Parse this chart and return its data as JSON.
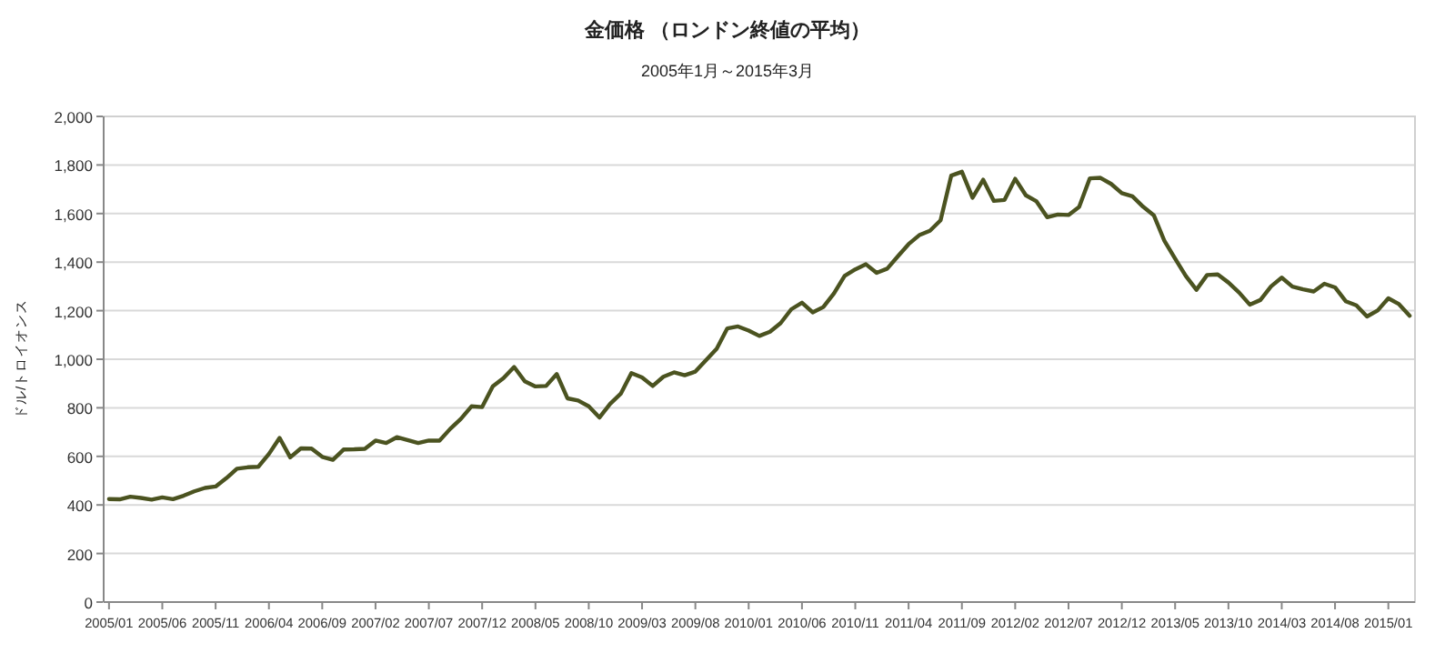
{
  "chart_data": {
    "type": "line",
    "title": "金価格 （ロンドン終値の平均）",
    "subtitle": "2005年1月～2015年3月",
    "ylabel": "ドル/トロイオンス",
    "categories": [
      "2005/01",
      null,
      null,
      null,
      null,
      "2005/06",
      null,
      null,
      null,
      null,
      "2005/11",
      null,
      null,
      null,
      null,
      "2006/04",
      null,
      null,
      null,
      null,
      "2006/09",
      null,
      null,
      null,
      null,
      "2007/02",
      null,
      null,
      null,
      null,
      "2007/07",
      null,
      null,
      null,
      null,
      "2007/12",
      null,
      null,
      null,
      null,
      "2008/05",
      null,
      null,
      null,
      null,
      "2008/10",
      null,
      null,
      null,
      null,
      "2009/03",
      null,
      null,
      null,
      null,
      "2009/08",
      null,
      null,
      null,
      null,
      "2010/01",
      null,
      null,
      null,
      null,
      "2010/06",
      null,
      null,
      null,
      null,
      "2010/11",
      null,
      null,
      null,
      null,
      "2011/04",
      null,
      null,
      null,
      null,
      "2011/09",
      null,
      null,
      null,
      null,
      "2012/02",
      null,
      null,
      null,
      null,
      "2012/07",
      null,
      null,
      null,
      null,
      "2012/12",
      null,
      null,
      null,
      null,
      "2013/05",
      null,
      null,
      null,
      null,
      "2013/10",
      null,
      null,
      null,
      null,
      "2014/03",
      null,
      null,
      null,
      null,
      "2014/08",
      null,
      null,
      null,
      null,
      "2015/01",
      null,
      null
    ],
    "series": [
      {
        "color": "#4b5320",
        "values": [
          424,
          423,
          434,
          429,
          422,
          431,
          424,
          438,
          456,
          470,
          476,
          510,
          549,
          555,
          557,
          610,
          676,
          596,
          633,
          632,
          598,
          586,
          628,
          629,
          631,
          665,
          655,
          679,
          667,
          655,
          665,
          665,
          713,
          754,
          806,
          803,
          889,
          922,
          968,
          909,
          888,
          890,
          939,
          839,
          830,
          806,
          760,
          816,
          858,
          943,
          925,
          890,
          928,
          946,
          934,
          949,
          996,
          1043,
          1127,
          1135,
          1118,
          1096,
          1113,
          1149,
          1206,
          1233,
          1193,
          1215,
          1271,
          1343,
          1370,
          1391,
          1356,
          1373,
          1424,
          1474,
          1511,
          1529,
          1572,
          1756,
          1772,
          1665,
          1739,
          1652,
          1656,
          1743,
          1675,
          1650,
          1585,
          1596,
          1594,
          1627,
          1745,
          1747,
          1722,
          1684,
          1671,
          1628,
          1593,
          1487,
          1414,
          1343,
          1286,
          1347,
          1349,
          1316,
          1275,
          1225,
          1244,
          1300,
          1336,
          1299,
          1288,
          1279,
          1311,
          1296,
          1239,
          1222,
          1176,
          1201,
          1251,
          1227,
          1179
        ]
      }
    ],
    "ylim": [
      0,
      2000
    ],
    "yticks": [
      0,
      200,
      400,
      600,
      800,
      {
        "value": 1000,
        "label": "1,000"
      },
      {
        "value": 1200,
        "label": "1,200"
      },
      {
        "value": 1400,
        "label": "1,400"
      },
      {
        "value": 1600,
        "label": "1,600"
      },
      {
        "value": 1800,
        "label": "1,800"
      },
      {
        "value": 2000,
        "label": "2,000"
      }
    ],
    "grid": "y"
  }
}
